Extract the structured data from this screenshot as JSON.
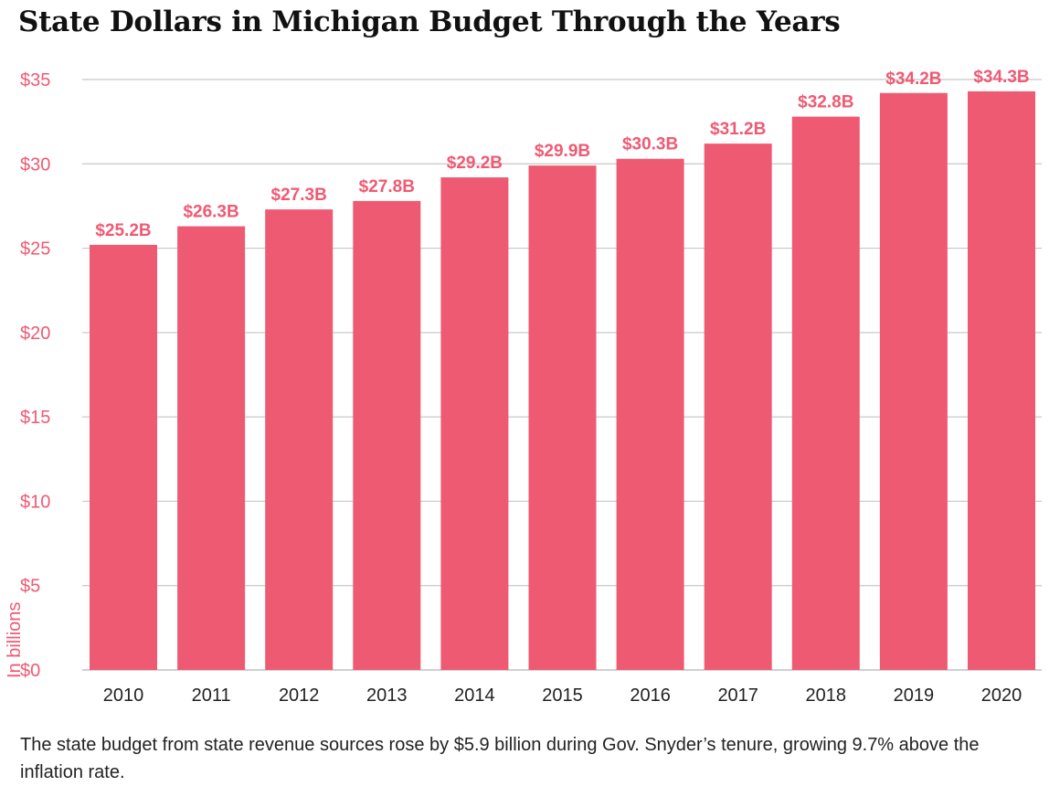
{
  "title": "State Dollars in Michigan Budget Through the Years",
  "note": "The state budget from state revenue sources rose by $5.9 billion during Gov. Snyder’s tenure, growing 9.7% above the inflation rate.",
  "colors": {
    "bar": "#ef5a73",
    "grid": "#c8c8c8",
    "axis_text": "#ef5a73",
    "text": "#222222"
  },
  "chart_data": {
    "type": "bar",
    "title": "State Dollars in Michigan Budget Through the Years",
    "xlabel": "",
    "ylabel": "In billions",
    "categories": [
      "2010",
      "2011",
      "2012",
      "2013",
      "2014",
      "2015",
      "2016",
      "2017",
      "2018",
      "2019",
      "2020"
    ],
    "values": [
      25.2,
      26.3,
      27.3,
      27.8,
      29.2,
      29.9,
      30.3,
      31.2,
      32.8,
      34.2,
      34.3
    ],
    "value_labels": [
      "$25.2B",
      "$26.3B",
      "$27.3B",
      "$27.8B",
      "$29.2B",
      "$29.9B",
      "$30.3B",
      "$31.2B",
      "$32.8B",
      "$34.2B",
      "$34.3B"
    ],
    "ylim": [
      0,
      35
    ],
    "yticks": [
      0,
      5,
      10,
      15,
      20,
      25,
      30,
      35
    ],
    "ytick_labels": [
      "$0",
      "$5",
      "$10",
      "$15",
      "$20",
      "$25",
      "$30",
      "$35"
    ],
    "grid": true
  }
}
